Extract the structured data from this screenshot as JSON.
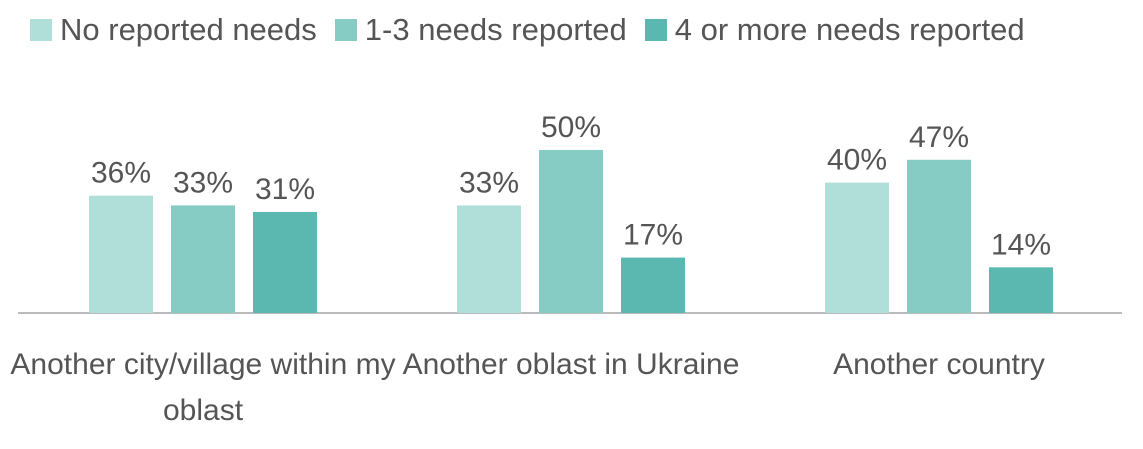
{
  "chart_data": {
    "type": "bar",
    "categories": [
      "Another city/village within my oblast",
      "Another oblast in Ukraine",
      "Another country"
    ],
    "series": [
      {
        "name": "No reported needs",
        "color": "#b0dfd9",
        "values": [
          36,
          33,
          40
        ],
        "value_labels": [
          "36%",
          "33%",
          "40%"
        ]
      },
      {
        "name": "1-3 needs reported",
        "color": "#86cbc4",
        "values": [
          33,
          50,
          47
        ],
        "value_labels": [
          "33%",
          "50%",
          "47%"
        ]
      },
      {
        "name": "4 or more needs reported",
        "color": "#5bb8b0",
        "values": [
          31,
          17,
          14
        ],
        "value_labels": [
          "31%",
          "17%",
          "14%"
        ]
      }
    ]
  }
}
